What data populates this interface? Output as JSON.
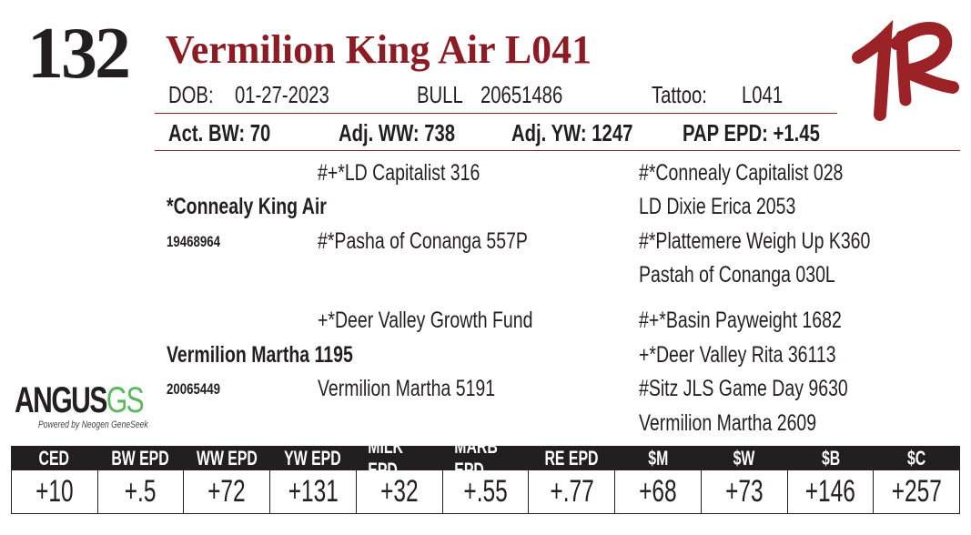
{
  "lot_number": "132",
  "animal_name": "Vermilion King Air L041",
  "dob_label": "DOB:",
  "dob": "01-27-2023",
  "sex": "BULL",
  "registration": "20651486",
  "tattoo_label": "Tattoo:",
  "tattoo": "L041",
  "performance": {
    "act_bw": "Act. BW: 70",
    "adj_ww": "Adj. WW: 738",
    "adj_yw": "Adj. YW: 1247",
    "pap_epd": "PAP EPD: +1.45"
  },
  "pedigree": {
    "sire": {
      "name": "*Connealy King Air",
      "reg": "19468964",
      "sire": "#+*LD Capitalist 316",
      "dam": "#*Pasha of Conanga 557P",
      "ss": "#*Connealy Capitalist 028",
      "sd": "LD Dixie Erica 2053",
      "ds": "#*Plattemere Weigh Up K360",
      "dd": "Pastah of Conanga 030L"
    },
    "dam": {
      "name": "Vermilion Martha 1195",
      "reg": "20065449",
      "sire": "+*Deer Valley Growth Fund",
      "dam": "Vermilion Martha 5191",
      "ss": "#+*Basin Payweight 1682",
      "sd": "+*Deer Valley Rita 36113",
      "ds": "#Sitz JLS Game Day 9630",
      "dd": "Vermilion Martha 2609"
    }
  },
  "logo": {
    "main": "ANGUS",
    "accent": "GS",
    "tagline": "Powered by Neogen GeneSeek"
  },
  "brand_mark": "1R",
  "colors": {
    "accent": "#8b1c24",
    "logo_green": "#5cb85c",
    "dark": "#231f20"
  },
  "epd_table": {
    "headers": [
      "CED",
      "BW EPD",
      "WW EPD",
      "YW EPD",
      "MILK EPD",
      "MARB EPD",
      "RE EPD",
      "$M",
      "$W",
      "$B",
      "$C"
    ],
    "values": [
      "+10",
      "+.5",
      "+72",
      "+131",
      "+32",
      "+.55",
      "+.77",
      "+68",
      "+73",
      "+146",
      "+257"
    ]
  }
}
